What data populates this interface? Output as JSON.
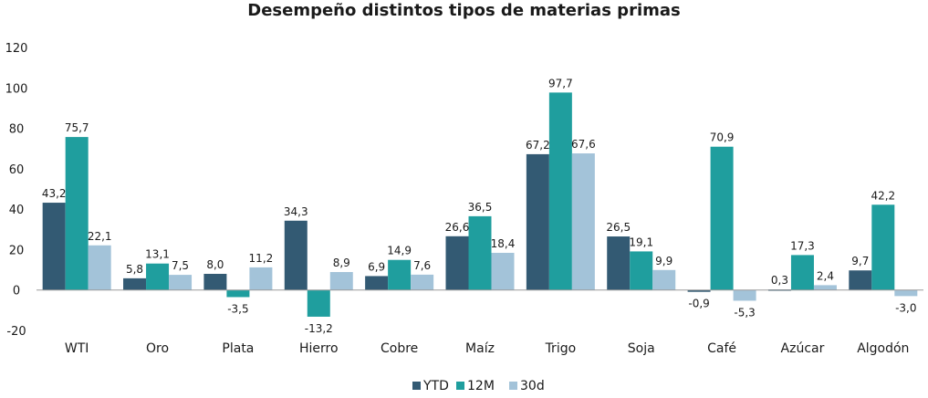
{
  "chart_data": {
    "type": "bar",
    "title": "Desempeño distintos tipos de materias primas",
    "xlabel": "",
    "ylabel": "",
    "ylim": [
      -20,
      120
    ],
    "yticks": [
      -20,
      0,
      20,
      40,
      60,
      80,
      100,
      120
    ],
    "grid": false,
    "legend_position": "bottom",
    "categories": [
      "WTI",
      "Oro",
      "Plata",
      "Hierro",
      "Cobre",
      "Maíz",
      "Trigo",
      "Soja",
      "Café",
      "Azúcar",
      "Algodón"
    ],
    "series": [
      {
        "name": "YTD",
        "color": "#335a73",
        "values": [
          43.2,
          5.8,
          8.0,
          34.3,
          6.9,
          26.6,
          67.2,
          26.5,
          -0.9,
          0.3,
          9.7
        ]
      },
      {
        "name": "12M",
        "color": "#1f9e9e",
        "values": [
          75.7,
          13.1,
          -3.5,
          -13.2,
          14.9,
          36.5,
          97.7,
          19.1,
          70.9,
          17.3,
          42.2
        ]
      },
      {
        "name": "30d",
        "color": "#a3c3d9",
        "values": [
          22.1,
          7.5,
          11.2,
          8.9,
          7.6,
          18.4,
          67.6,
          9.9,
          -5.3,
          2.4,
          -3.0
        ]
      }
    ],
    "data_labels": [
      [
        "43,2",
        "5,8",
        "8,0",
        "34,3",
        "6,9",
        "26,6",
        "67,2",
        "26,5",
        "-0,9",
        "0,3",
        "9,7"
      ],
      [
        "75,7",
        "13,1",
        "-3,5",
        "-13,2",
        "14,9",
        "36,5",
        "97,7",
        "19,1",
        "70,9",
        "17,3",
        "42,2"
      ],
      [
        "22,1",
        "7,5",
        "11,2",
        "8,9",
        "7,6",
        "18,4",
        "67,6",
        "9,9",
        "-5,3",
        "2,4",
        "-3,0"
      ]
    ]
  }
}
